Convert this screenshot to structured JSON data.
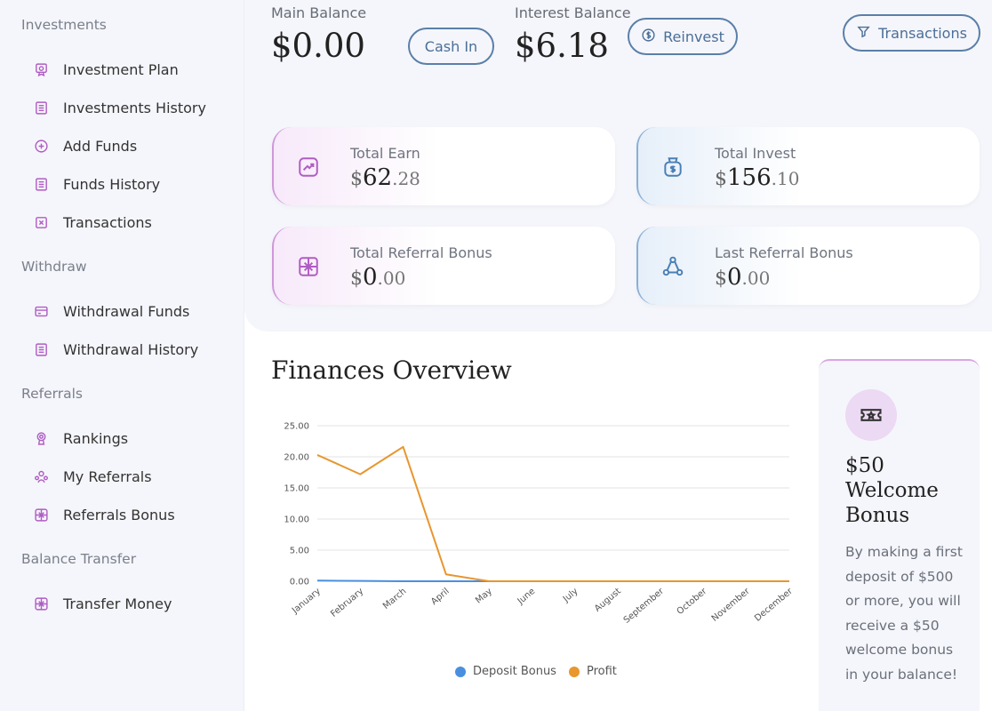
{
  "sidebar": {
    "sections": [
      {
        "title": "Investments",
        "items": [
          {
            "label": "Investment Plan",
            "icon": "certificate-icon"
          },
          {
            "label": "Investments History",
            "icon": "list-icon"
          },
          {
            "label": "Add Funds",
            "icon": "plus-circle-icon"
          },
          {
            "label": "Funds History",
            "icon": "list-icon"
          },
          {
            "label": "Transactions",
            "icon": "x-square-icon"
          }
        ]
      },
      {
        "title": "Withdraw",
        "items": [
          {
            "label": "Withdrawal Funds",
            "icon": "card-icon"
          },
          {
            "label": "Withdrawal History",
            "icon": "list-icon"
          }
        ]
      },
      {
        "title": "Referrals",
        "items": [
          {
            "label": "Rankings",
            "icon": "trophy-icon"
          },
          {
            "label": "My Referrals",
            "icon": "users-icon"
          },
          {
            "label": "Referrals Bonus",
            "icon": "gift-icon"
          }
        ]
      },
      {
        "title": "Balance Transfer",
        "items": [
          {
            "label": "Transfer Money",
            "icon": "gift-icon"
          }
        ]
      }
    ]
  },
  "balances": {
    "main_label": "Main Balance",
    "main_value": "$0.00",
    "cash_in": "Cash In",
    "interest_label": "Interest Balance",
    "interest_value": "$6.18",
    "reinvest": "Reinvest",
    "transactions": "Transactions"
  },
  "cards": {
    "total_earn": {
      "label": "Total Earn",
      "symbol": "$",
      "int": "62",
      "dec": ".28"
    },
    "total_invest": {
      "label": "Total Invest",
      "symbol": "$",
      "int": "156",
      "dec": ".10"
    },
    "total_referral": {
      "label": "Total Referral Bonus",
      "symbol": "$",
      "int": "0",
      "dec": ".00"
    },
    "last_referral": {
      "label": "Last Referral Bonus",
      "symbol": "$",
      "int": "0",
      "dec": ".00"
    }
  },
  "overview": {
    "title": "Finances Overview"
  },
  "chart_data": {
    "type": "line",
    "categories": [
      "January",
      "February",
      "March",
      "April",
      "May",
      "June",
      "July",
      "August",
      "September",
      "October",
      "November",
      "December"
    ],
    "series": [
      {
        "name": "Deposit Bonus",
        "color": "#4a8fdf",
        "values": [
          0.1,
          0.05,
          0,
          0,
          0,
          0,
          0,
          0,
          0,
          0,
          0,
          0
        ]
      },
      {
        "name": "Profit",
        "color": "#e8962e",
        "values": [
          20.3,
          17.2,
          21.6,
          1.1,
          0,
          0,
          0,
          0,
          0,
          0,
          0,
          0
        ]
      }
    ],
    "yticks": [
      "25.00",
      "20.00",
      "15.00",
      "10.00",
      "5.00",
      "0.00"
    ],
    "ylim": [
      0,
      25
    ],
    "grid": true,
    "legend": "bottom"
  },
  "welcome": {
    "title": "$50 Welcome Bonus",
    "text": "By making a first deposit of $500 or more, you will receive a $50 welcome bonus in your balance!"
  },
  "colors": {
    "accent_pink": "#b05cc4",
    "accent_blue": "#4a7fb5",
    "panel_bg": "#f5f6fb"
  }
}
